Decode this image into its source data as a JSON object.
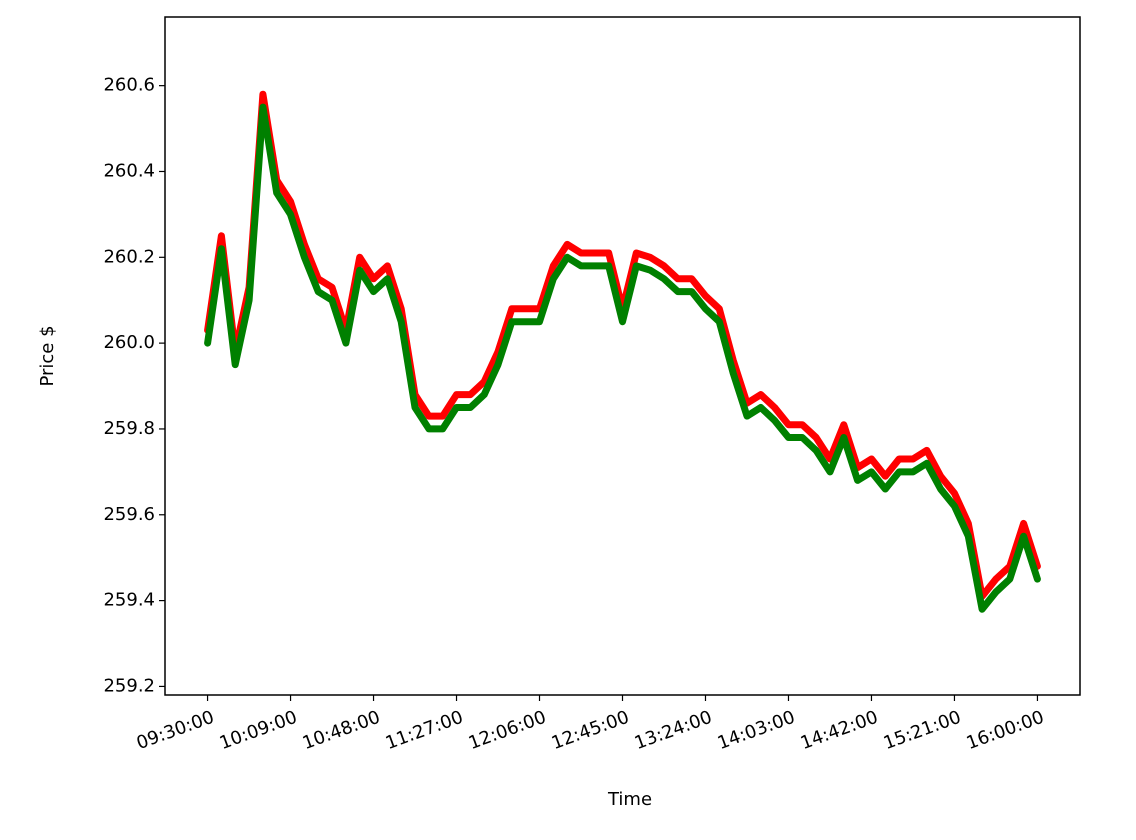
{
  "chart_data": {
    "type": "line",
    "x_label": "Time",
    "y_label": "Price $",
    "x": [
      "09:30:00",
      "09:36:30",
      "09:43:00",
      "09:49:30",
      "09:56:00",
      "10:02:30",
      "10:09:00",
      "10:15:30",
      "10:22:00",
      "10:28:30",
      "10:35:00",
      "10:41:30",
      "10:48:00",
      "10:54:30",
      "11:01:00",
      "11:07:30",
      "11:14:00",
      "11:20:30",
      "11:27:00",
      "11:33:30",
      "11:40:00",
      "11:46:30",
      "11:53:00",
      "11:59:30",
      "12:06:00",
      "12:12:30",
      "12:19:00",
      "12:25:30",
      "12:32:00",
      "12:38:30",
      "12:45:00",
      "12:51:30",
      "12:58:00",
      "13:04:30",
      "13:11:00",
      "13:17:30",
      "13:24:00",
      "13:30:30",
      "13:37:00",
      "13:43:30",
      "13:50:00",
      "13:56:30",
      "14:03:00",
      "14:09:30",
      "14:16:00",
      "14:22:30",
      "14:29:00",
      "14:35:30",
      "14:42:00",
      "14:48:30",
      "14:55:00",
      "15:01:30",
      "15:08:00",
      "15:14:30",
      "15:21:00",
      "15:27:30",
      "15:34:00",
      "15:40:30",
      "15:47:00",
      "15:53:30",
      "16:00:00"
    ],
    "series": [
      {
        "color": "red",
        "values": [
          260.03,
          260.25,
          259.98,
          260.13,
          260.58,
          260.38,
          260.33,
          260.23,
          260.15,
          260.13,
          260.03,
          260.2,
          260.15,
          260.18,
          260.08,
          259.88,
          259.83,
          259.83,
          259.88,
          259.88,
          259.91,
          259.98,
          260.08,
          260.08,
          260.08,
          260.18,
          260.23,
          260.21,
          260.21,
          260.21,
          260.08,
          260.21,
          260.2,
          260.18,
          260.15,
          260.15,
          260.11,
          260.08,
          259.96,
          259.86,
          259.88,
          259.85,
          259.81,
          259.81,
          259.78,
          259.73,
          259.81,
          259.71,
          259.73,
          259.69,
          259.73,
          259.73,
          259.75,
          259.69,
          259.65,
          259.58,
          259.41,
          259.45,
          259.48,
          259.58,
          259.48
        ]
      },
      {
        "color": "green",
        "values": [
          260.0,
          260.22,
          259.95,
          260.1,
          260.55,
          260.35,
          260.3,
          260.2,
          260.12,
          260.1,
          260.0,
          260.17,
          260.12,
          260.15,
          260.05,
          259.85,
          259.8,
          259.8,
          259.85,
          259.85,
          259.88,
          259.95,
          260.05,
          260.05,
          260.05,
          260.15,
          260.2,
          260.18,
          260.18,
          260.18,
          260.05,
          260.18,
          260.17,
          260.15,
          260.12,
          260.12,
          260.08,
          260.05,
          259.93,
          259.83,
          259.85,
          259.82,
          259.78,
          259.78,
          259.75,
          259.7,
          259.78,
          259.68,
          259.7,
          259.66,
          259.7,
          259.7,
          259.72,
          259.66,
          259.62,
          259.55,
          259.38,
          259.42,
          259.45,
          259.55,
          259.45
        ]
      }
    ],
    "xlim": [
      "09:10:00",
      "16:20:00"
    ],
    "xticks": [
      "09:30:00",
      "10:09:00",
      "10:48:00",
      "11:27:00",
      "12:06:00",
      "12:45:00",
      "13:24:00",
      "14:03:00",
      "14:42:00",
      "15:21:00",
      "16:00:00"
    ],
    "ylim": [
      259.18,
      260.76
    ],
    "yticks": [
      259.2,
      259.4,
      259.6,
      259.8,
      {
        "value": 260,
        "label": "260.0"
      },
      260.2,
      260.4,
      260.6
    ],
    "grid": false
  }
}
